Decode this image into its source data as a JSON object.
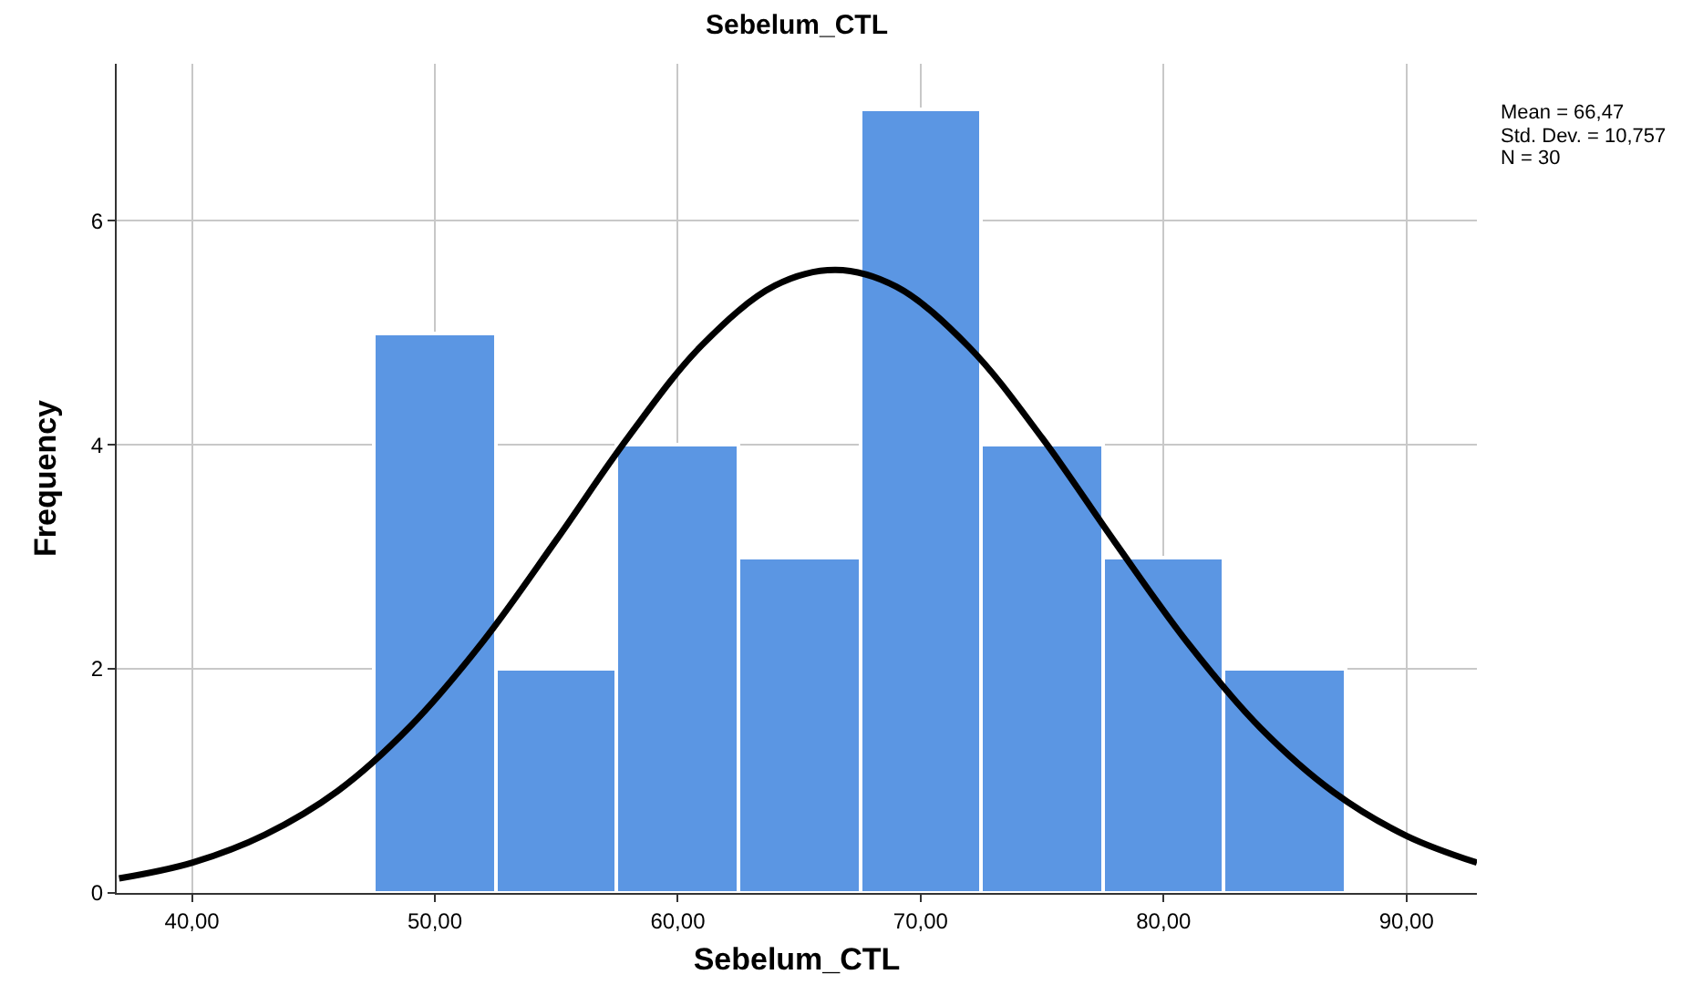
{
  "chart_data": {
    "type": "histogram",
    "title": "Sebelum_CTL",
    "xlabel": "Sebelum_CTL",
    "ylabel": "Frequency",
    "bins": [
      47.5,
      52.5,
      57.5,
      62.5,
      67.5,
      72.5,
      77.5,
      82.5,
      87.5
    ],
    "values": [
      5,
      2,
      4,
      3,
      7,
      4,
      3,
      2
    ],
    "color": "#5b96e3",
    "series": [
      {
        "type": "line",
        "color": "#000000",
        "x": [
          37,
          40,
          43,
          46,
          49,
          52,
          55,
          58,
          61,
          64,
          66.5,
          69,
          72,
          75,
          78,
          81,
          84,
          87,
          90,
          92.9
        ],
        "values": [
          0.13,
          0.27,
          0.52,
          0.91,
          1.49,
          2.25,
          3.15,
          4.08,
          4.89,
          5.42,
          5.56,
          5.41,
          4.87,
          4.06,
          3.13,
          2.23,
          1.47,
          0.9,
          0.51,
          0.27
        ]
      }
    ],
    "xlim": [
      36.9,
      92.9
    ],
    "xticks": [
      {
        "value": 40,
        "label": "40,00"
      },
      {
        "value": 50,
        "label": "50,00"
      },
      {
        "value": 60,
        "label": "60,00"
      },
      {
        "value": 70,
        "label": "70,00"
      },
      {
        "value": 80,
        "label": "80,00"
      },
      {
        "value": 90,
        "label": "90,00"
      }
    ],
    "ylim": [
      0,
      7.4
    ],
    "yticks": [
      0,
      2,
      4,
      6
    ],
    "grid": true,
    "annotations": [
      "Mean = 66,47",
      "Std. Dev. = 10,757",
      "N = 30"
    ]
  }
}
